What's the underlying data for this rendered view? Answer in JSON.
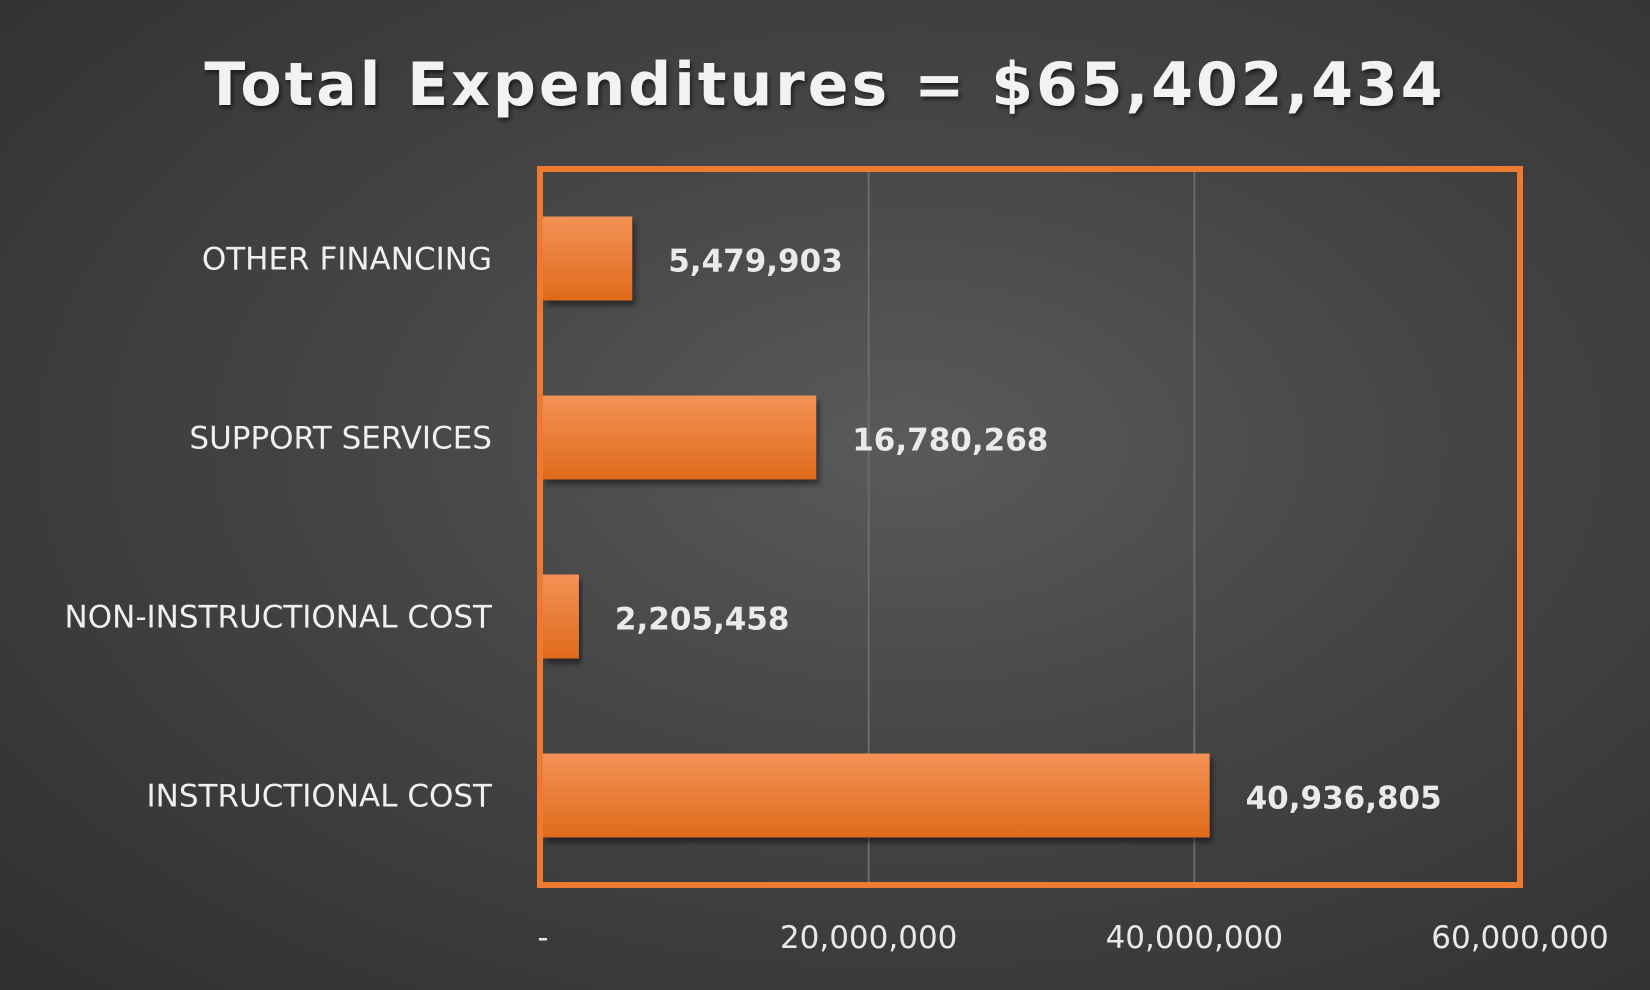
{
  "chart_data": {
    "type": "bar",
    "orientation": "horizontal",
    "title": "Total Expenditures = $65,402,434",
    "categories": [
      "OTHER FINANCING",
      "SUPPORT SERVICES",
      "NON-INSTRUCTIONAL COST",
      "INSTRUCTIONAL COST"
    ],
    "values": [
      5479903,
      16780268,
      2205458,
      40936805
    ],
    "data_labels": [
      "5,479,903",
      "16,780,268",
      "2,205,458",
      "40,936,805"
    ],
    "xlim": [
      0,
      60000000
    ],
    "x_ticks": [
      0,
      20000000,
      40000000,
      60000000
    ],
    "x_tick_labels": [
      "-",
      "20,000,000",
      "40,000,000",
      "60,000,000"
    ],
    "xlabel": "",
    "ylabel": "",
    "grid": "vertical",
    "colors": {
      "bar": "#ee7a2f",
      "bar_light": "#f39256",
      "bar_dark": "#e06a1c",
      "frame": "#ee7a2f",
      "gridline": "#6b6b6b"
    }
  }
}
